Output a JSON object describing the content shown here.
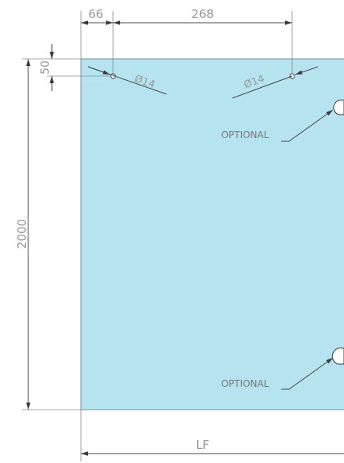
{
  "dimensions": {
    "hole_offset_x": "66",
    "hole_spacing": "268",
    "hole_offset_y": "50",
    "panel_height": "2000",
    "panel_width": "LF"
  },
  "holes": {
    "left_label": "Ø14",
    "right_label": "Ø14"
  },
  "callouts": {
    "upper_label": "OPTIONAL",
    "lower_label": "OPTIONAL"
  },
  "colors": {
    "panel_fill": "#b5e3ef",
    "panel_stroke": "#6f8f98",
    "line": "#4a4a4a",
    "text": "#9a9a9a"
  }
}
